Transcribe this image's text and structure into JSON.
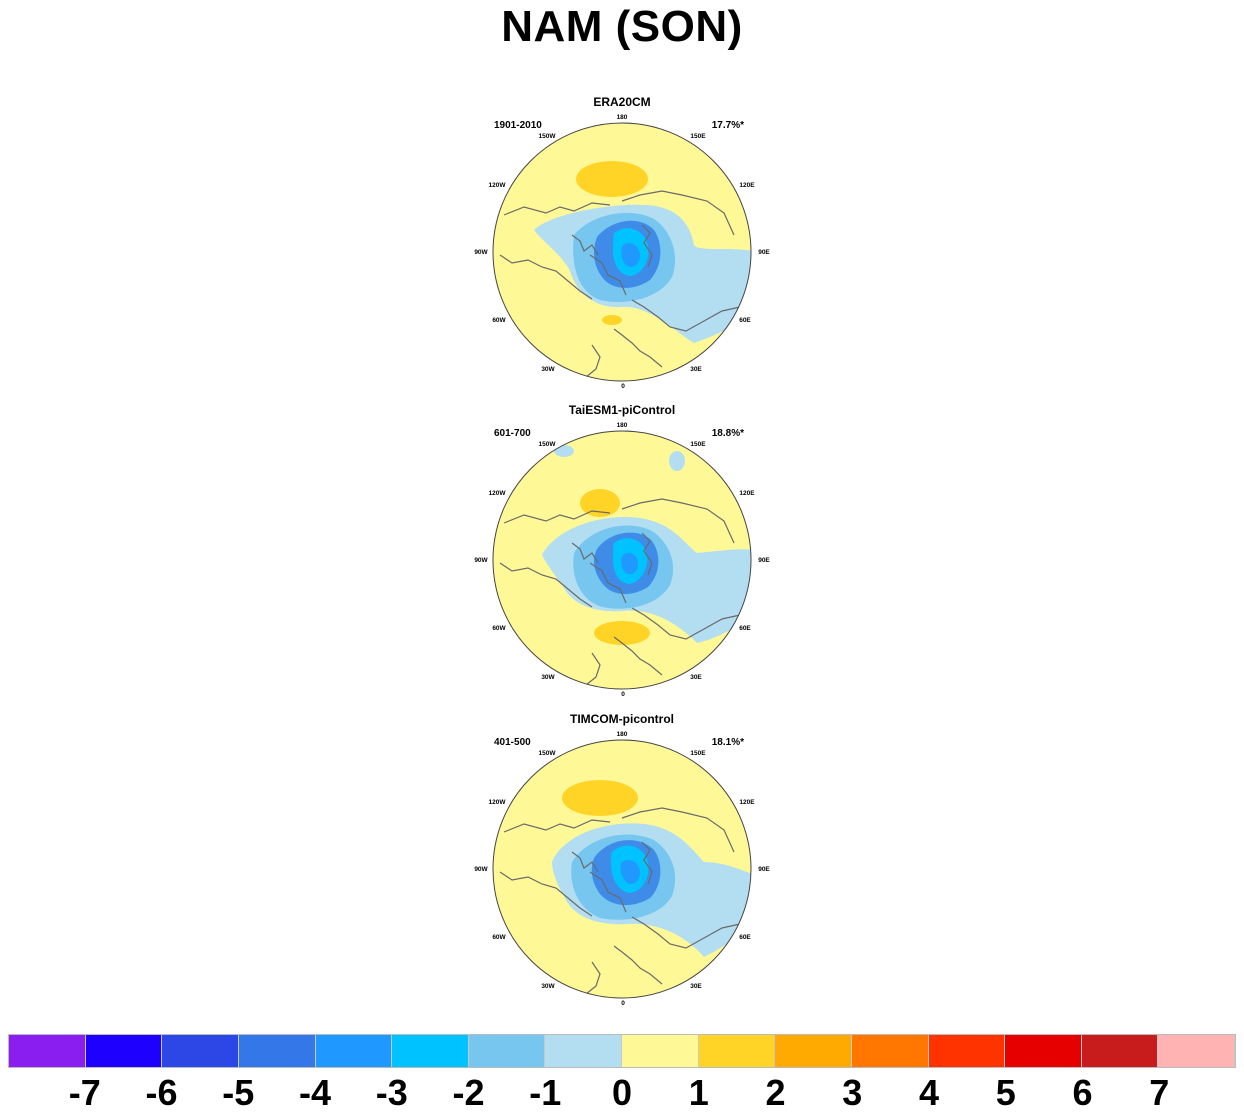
{
  "title": "NAM (SON)",
  "panels": [
    {
      "title": "ERA20CM",
      "period": "1901-2010",
      "percent": "17.7%*"
    },
    {
      "title": "TaiESM1-piControl",
      "period": "601-700",
      "percent": "18.8%*"
    },
    {
      "title": "TIMCOM-picontrol",
      "period": "401-500",
      "percent": "18.1%*"
    }
  ],
  "longitude_labels": [
    "180",
    "150E",
    "120E",
    "90E",
    "60E",
    "30E",
    "0",
    "30W",
    "60W",
    "90W",
    "120W",
    "150W"
  ],
  "colorbar": {
    "labels": [
      "-7",
      "-6",
      "-5",
      "-4",
      "-3",
      "-2",
      "-1",
      "0",
      "1",
      "2",
      "3",
      "4",
      "5",
      "6",
      "7"
    ],
    "colors": [
      "#8a1ef0",
      "#1e00ff",
      "#2d46e6",
      "#3377e8",
      "#1f99ff",
      "#00c2ff",
      "#76c6f0",
      "#b3def2",
      "#fff897",
      "#ffd426",
      "#ffaa00",
      "#ff7700",
      "#ff3300",
      "#e60000",
      "#c81c1c",
      "#ffb3b3"
    ]
  }
}
